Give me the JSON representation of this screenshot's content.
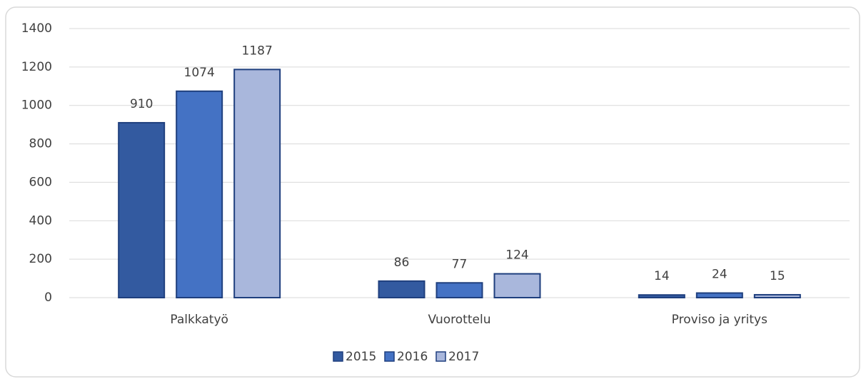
{
  "chart_data": {
    "type": "bar",
    "categories": [
      "Palkkatyö",
      "Vuorottelu",
      "Proviso ja yritys"
    ],
    "series": [
      {
        "name": "2015",
        "color": "#335aa0",
        "values": [
          910,
          86,
          14
        ]
      },
      {
        "name": "2016",
        "color": "#4472c4",
        "values": [
          1074,
          77,
          24
        ]
      },
      {
        "name": "2017",
        "color": "#a9b7dc",
        "values": [
          1187,
          124,
          15
        ]
      }
    ],
    "ylim": [
      0,
      1400
    ],
    "yticks": [
      0,
      200,
      400,
      600,
      800,
      1000,
      1200,
      1400
    ],
    "grid": true,
    "legend": "bottom"
  }
}
